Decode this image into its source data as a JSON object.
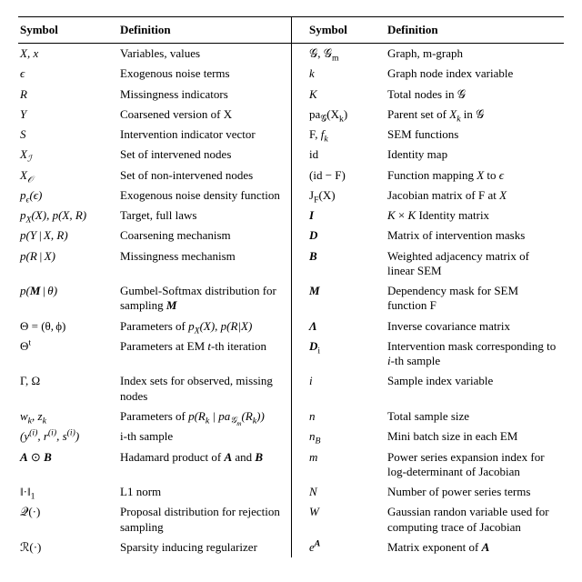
{
  "headers": {
    "symbol": "Symbol",
    "definition": "Definition"
  },
  "left": [
    {
      "sym": "X, x",
      "symClass": "it",
      "def": "Variables, values"
    },
    {
      "sym": "ϵ",
      "symClass": "it",
      "def": "Exogenous noise terms"
    },
    {
      "sym": "R",
      "symClass": "it",
      "def": "Missingness indicators"
    },
    {
      "sym": "Y",
      "symClass": "it",
      "def": "Coarsened version of X"
    },
    {
      "sym": "S",
      "symClass": "it",
      "def": "Intervention indicator vector"
    },
    {
      "sym": "X<sub>ℐ</sub>",
      "symClass": "it",
      "def": "Set of intervened nodes"
    },
    {
      "sym": "X<sub>𝒪</sub>",
      "symClass": "it",
      "def": "Set of non-intervened nodes"
    },
    {
      "sym": "p<sub>ϵ</sub>(ϵ)",
      "symClass": "it",
      "def": "Exogenous noise density function"
    },
    {
      "sym": "p<sub>X</sub>(X), p(X, R)",
      "symClass": "it",
      "def": "Target, full laws"
    },
    {
      "sym": "p(Y | X, R)",
      "symClass": "it",
      "def": "Coarsening mechanism"
    },
    {
      "sym": "p(R | X)",
      "symClass": "it",
      "def": "Missingness mechanism"
    },
    {
      "sym": "p(<span class=\"bf\">M</span> | θ)",
      "symClass": "it",
      "def": "Gumbel-Softmax distribution for sampling <span class=\"bf\">M</span>"
    },
    {
      "sym": "Θ = (θ, ϕ)",
      "symClass": "",
      "def": "Parameters of <span class=\"it\">p<sub>X</sub>(X)</span>, <span class=\"it\">p(R|X)</span>"
    },
    {
      "sym": "Θ<sup>t</sup>",
      "symClass": "",
      "def": "Parameters at EM <span class=\"it\">t</span>-th iteration"
    },
    {
      "sym": "Γ, Ω",
      "symClass": "",
      "def": "Index sets for observed, missing nodes"
    },
    {
      "sym": "w<sub>k</sub>, z<sub>k</sub>",
      "symClass": "it",
      "def": "Parameters of <span class=\"it\">p(R<sub>k</sub> | pa<sub>𝒢<sub>m</sub></sub>(R<sub>k</sub>))</span>"
    },
    {
      "sym": "(y<sup>(i)</sup>, r<sup>(i)</sup>, s<sup>(i)</sup>)",
      "symClass": "it",
      "def": "i-th sample"
    },
    {
      "sym": "<span class=\"bf\">A</span> ⊙ <span class=\"bf\">B</span>",
      "symClass": "",
      "def": "Hadamard product of <span class=\"bf\">A</span> and <span class=\"bf\">B</span>"
    },
    {
      "sym": "‖·‖<sub>1</sub>",
      "symClass": "",
      "def": "L1 norm"
    },
    {
      "sym": "𝒬(·)",
      "symClass": "",
      "def": "Proposal distribution for rejection sampling"
    },
    {
      "sym": "ℛ(·)",
      "symClass": "",
      "def": "Sparsity inducing regularizer"
    }
  ],
  "right": [
    {
      "sym": "𝒢, 𝒢<sub>m</sub>",
      "symClass": "",
      "def": "Graph, m-graph"
    },
    {
      "sym": "k",
      "symClass": "it",
      "def": "Graph node index variable"
    },
    {
      "sym": "K",
      "symClass": "it",
      "def": "Total nodes in 𝒢"
    },
    {
      "sym": "pa<sub>𝒢</sub>(X<sub>k</sub>)",
      "symClass": "",
      "def": "Parent set of <span class=\"it\">X<sub>k</sub></span> in 𝒢"
    },
    {
      "sym": "F, <span class=\"it\">f<sub>k</sub></span>",
      "symClass": "",
      "def": "SEM functions"
    },
    {
      "sym": "id",
      "symClass": "",
      "def": "Identity map"
    },
    {
      "sym": "(id − F)",
      "symClass": "",
      "def": "Function mapping <span class=\"it\">X</span> to <span class=\"it\">ϵ</span>"
    },
    {
      "sym": "J<sub>F</sub>(X)",
      "symClass": "",
      "def": "Jacobian matrix of F at <span class=\"it\">X</span>"
    },
    {
      "sym": "I",
      "symClass": "bf",
      "def": "<span class=\"it\">K</span> × <span class=\"it\">K</span> Identity matrix"
    },
    {
      "sym": "D",
      "symClass": "bf",
      "def": "Matrix of intervention masks"
    },
    {
      "sym": "B",
      "symClass": "bf",
      "def": "Weighted adjacency matrix of linear SEM"
    },
    {
      "sym": "M",
      "symClass": "bf",
      "def": "Dependency mask for SEM function F"
    },
    {
      "sym": "Λ",
      "symClass": "bf",
      "def": "Inverse covariance matrix"
    },
    {
      "sym": "<span class=\"bf\">D</span><sub>i</sub>",
      "symClass": "",
      "def": "Intervention mask corresponding to <span class=\"it\">i</span>-th sample"
    },
    {
      "sym": "i",
      "symClass": "it",
      "def": "Sample index variable"
    },
    {
      "sym": "n",
      "symClass": "it",
      "def": "Total sample size"
    },
    {
      "sym": "n<sub>B</sub>",
      "symClass": "it",
      "def": "Mini batch size in each EM"
    },
    {
      "sym": "m",
      "symClass": "it",
      "def": "Power series expansion index for log-determinant of Jacobian"
    },
    {
      "sym": "N",
      "symClass": "it",
      "def": "Number of power series terms"
    },
    {
      "sym": "W",
      "symClass": "it",
      "def": "Gaussian randon variable used for computing trace of Jacobian"
    },
    {
      "sym": "e<sup><span class=\"bf\">A</span></sup>",
      "symClass": "it",
      "def": "Matrix exponent of <span class=\"bf\">A</span>"
    }
  ],
  "style": {
    "font_family": "Times New Roman",
    "font_size_pt": 10,
    "header_weight": "bold",
    "rule_color": "#000000",
    "background_color": "#ffffff",
    "text_color": "#000000"
  }
}
